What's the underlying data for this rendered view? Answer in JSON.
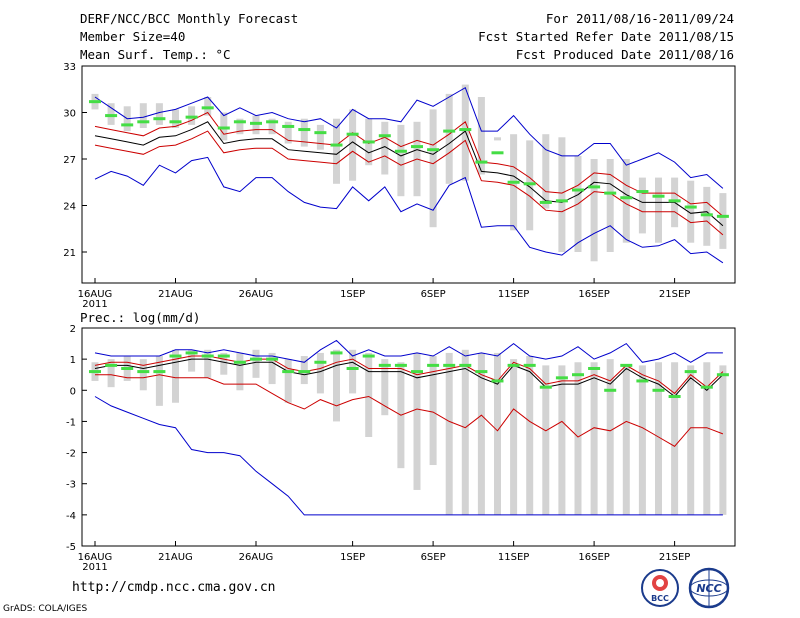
{
  "header": {
    "title": "DERF/NCC/BCC Monthly Forecast",
    "member_size": "Member Size=40",
    "variable": "Mean Surf. Temp.: °C",
    "period": "For 2011/08/16-2011/09/24",
    "refer_date": "Fcst Started Refer Date 2011/08/15",
    "produced_date": "Fcst Produced Date 2011/08/16"
  },
  "precip_label": "Prec.: log(mm/d)",
  "footer": {
    "url": "http://cmdp.ncc.cma.gov.cn",
    "credit": "GrADS: COLA/IGES",
    "logo_bcc": "BCC",
    "logo_ncc": "NCC"
  },
  "colors": {
    "envelope": "#0000cc",
    "spread": "#cc0000",
    "mean": "#000000",
    "box": "#d3d3d3",
    "median": "#44dd44"
  },
  "chart_data": [
    {
      "type": "box",
      "title": "Mean Surf. Temp.: °C",
      "ylim": [
        19,
        33
      ],
      "yticks": [
        21,
        24,
        27,
        30,
        33
      ],
      "x_ticks": [
        {
          "day": 0,
          "label": "16AUG",
          "year": "2011"
        },
        {
          "day": 5,
          "label": "21AUG"
        },
        {
          "day": 10,
          "label": "26AUG"
        },
        {
          "day": 16,
          "label": "1SEP"
        },
        {
          "day": 21,
          "label": "6SEP"
        },
        {
          "day": 26,
          "label": "11SEP"
        },
        {
          "day": 31,
          "label": "16SEP"
        },
        {
          "day": 36,
          "label": "21SEP"
        }
      ],
      "days": 40,
      "box_low": [
        30.2,
        29.2,
        28.8,
        29.0,
        29.2,
        29.0,
        29.2,
        29.8,
        28.2,
        28.6,
        28.6,
        28.6,
        28.0,
        27.8,
        27.6,
        25.4,
        25.6,
        26.6,
        26.0,
        24.6,
        24.6,
        22.6,
        25.4,
        25.6,
        26.0,
        28.2,
        22.4,
        22.4,
        23.8,
        21.0,
        21.0,
        20.4,
        21.0,
        21.6,
        22.2,
        21.6,
        22.6,
        21.6,
        21.4,
        21.2
      ],
      "box_high": [
        31.2,
        30.6,
        30.4,
        30.6,
        30.6,
        30.2,
        30.4,
        31.0,
        30.0,
        29.6,
        29.8,
        29.6,
        29.4,
        29.6,
        29.2,
        29.6,
        30.2,
        29.6,
        29.4,
        29.2,
        29.4,
        30.2,
        31.2,
        31.8,
        31.0,
        28.4,
        28.6,
        28.2,
        28.6,
        28.4,
        27.2,
        27.0,
        27.0,
        27.0,
        25.8,
        25.8,
        25.8,
        25.6,
        25.2,
        24.8
      ],
      "median": [
        30.7,
        29.8,
        29.2,
        29.4,
        29.6,
        29.4,
        29.7,
        30.3,
        29.0,
        29.4,
        29.3,
        29.4,
        29.1,
        28.9,
        28.7,
        27.9,
        28.6,
        28.1,
        28.5,
        27.5,
        27.8,
        27.6,
        28.8,
        28.9,
        26.8,
        27.4,
        25.5,
        25.4,
        24.2,
        24.3,
        25.0,
        25.2,
        24.8,
        24.5,
        24.9,
        24.6,
        24.3,
        23.9,
        23.4,
        23.3
      ],
      "mean": [
        28.5,
        28.3,
        28.1,
        27.9,
        28.4,
        28.5,
        28.9,
        29.4,
        28.0,
        28.2,
        28.3,
        28.3,
        27.6,
        27.5,
        27.4,
        27.3,
        28.1,
        27.4,
        27.8,
        27.2,
        27.6,
        27.3,
        28.0,
        28.8,
        26.2,
        26.1,
        25.9,
        25.2,
        24.3,
        24.2,
        24.7,
        25.5,
        25.4,
        24.7,
        24.2,
        24.2,
        24.2,
        23.5,
        23.6,
        22.7
      ],
      "spread_high": [
        29.1,
        28.9,
        28.7,
        28.5,
        29.0,
        29.1,
        29.5,
        30.0,
        28.6,
        28.8,
        28.9,
        28.9,
        28.2,
        28.1,
        28.0,
        27.9,
        28.7,
        28.0,
        28.4,
        27.8,
        28.2,
        27.9,
        28.6,
        29.4,
        26.8,
        26.7,
        26.5,
        25.8,
        24.9,
        24.8,
        25.3,
        26.1,
        26.0,
        25.3,
        24.8,
        24.8,
        24.8,
        24.1,
        24.2,
        23.3
      ],
      "spread_low": [
        27.9,
        27.7,
        27.5,
        27.3,
        27.8,
        27.9,
        28.3,
        28.8,
        27.4,
        27.6,
        27.7,
        27.7,
        27.0,
        26.9,
        26.8,
        26.7,
        27.5,
        26.8,
        27.2,
        26.6,
        27.0,
        26.7,
        27.4,
        28.2,
        25.6,
        25.5,
        25.3,
        24.6,
        23.7,
        23.6,
        24.1,
        24.9,
        24.8,
        24.1,
        23.6,
        23.6,
        23.6,
        22.9,
        23.0,
        22.1
      ],
      "env_high": [
        31.0,
        30.3,
        29.6,
        29.7,
        30.0,
        30.2,
        30.6,
        31.0,
        29.8,
        30.3,
        29.8,
        30.0,
        29.6,
        29.4,
        29.6,
        29.0,
        30.2,
        29.6,
        29.6,
        29.4,
        30.8,
        30.4,
        31.0,
        31.6,
        28.8,
        28.8,
        29.8,
        28.6,
        27.6,
        27.2,
        27.2,
        28.0,
        28.0,
        26.6,
        27.0,
        27.4,
        26.8,
        25.8,
        26.0,
        25.1
      ],
      "env_low": [
        25.7,
        26.2,
        25.9,
        25.3,
        26.6,
        26.1,
        26.9,
        27.1,
        25.2,
        24.9,
        25.8,
        25.8,
        24.9,
        24.2,
        23.9,
        23.8,
        25.2,
        24.3,
        25.2,
        23.6,
        24.1,
        23.7,
        25.3,
        25.8,
        22.6,
        22.7,
        22.7,
        21.3,
        21.0,
        20.8,
        21.6,
        22.2,
        22.7,
        21.8,
        21.3,
        21.4,
        21.8,
        20.9,
        21.0,
        20.3
      ]
    },
    {
      "type": "box",
      "title": "Prec.: log(mm/d)",
      "ylim": [
        -5,
        2
      ],
      "yticks": [
        -5,
        -4,
        -3,
        -2,
        -1,
        0,
        1,
        2
      ],
      "days": 40,
      "box_low": [
        0.3,
        0.1,
        0.3,
        0.0,
        -0.5,
        -0.4,
        0.6,
        0.4,
        0.5,
        0.0,
        0.4,
        0.2,
        -0.4,
        0.2,
        -0.1,
        -1.0,
        -0.1,
        -1.5,
        -0.8,
        -2.5,
        -3.2,
        -2.4,
        -4.0,
        -4.0,
        -4.0,
        -4.0,
        -4.0,
        -4.0,
        -4.0,
        -4.0,
        -4.0,
        -4.0,
        -4.0,
        -4.0,
        -4.0,
        -4.0,
        -4.0,
        -4.0,
        -4.0,
        -4.0
      ],
      "box_high": [
        0.9,
        1.0,
        1.1,
        1.0,
        1.1,
        1.3,
        1.3,
        1.3,
        1.2,
        1.2,
        1.3,
        1.2,
        1.0,
        1.1,
        1.2,
        1.3,
        1.3,
        1.2,
        1.0,
        0.9,
        1.2,
        1.1,
        1.2,
        1.3,
        1.2,
        1.2,
        1.0,
        1.1,
        0.8,
        0.8,
        0.9,
        0.9,
        1.0,
        0.8,
        0.8,
        0.9,
        0.9,
        0.8,
        0.9,
        0.8
      ],
      "median": [
        0.6,
        0.8,
        0.7,
        0.6,
        0.6,
        1.1,
        1.2,
        1.1,
        1.1,
        0.9,
        1.0,
        1.0,
        0.6,
        0.6,
        0.9,
        1.2,
        0.7,
        1.1,
        0.8,
        0.8,
        0.6,
        0.8,
        0.8,
        0.8,
        0.6,
        0.3,
        0.8,
        0.8,
        0.1,
        0.4,
        0.5,
        0.7,
        0.0,
        0.8,
        0.3,
        0.0,
        -0.2,
        0.6,
        0.1,
        0.5
      ],
      "mean": [
        0.7,
        0.8,
        0.8,
        0.7,
        0.8,
        0.9,
        1.0,
        1.0,
        0.9,
        0.8,
        0.9,
        0.9,
        0.6,
        0.5,
        0.6,
        0.8,
        0.9,
        0.6,
        0.6,
        0.6,
        0.4,
        0.5,
        0.6,
        0.7,
        0.4,
        0.2,
        0.8,
        0.6,
        0.1,
        0.2,
        0.2,
        0.4,
        0.2,
        0.7,
        0.4,
        0.2,
        -0.2,
        0.4,
        0.0,
        0.5
      ],
      "spread_high": [
        0.8,
        0.9,
        0.9,
        0.8,
        0.9,
        1.0,
        1.1,
        1.1,
        1.0,
        0.9,
        1.0,
        1.0,
        0.7,
        0.6,
        0.7,
        0.9,
        1.0,
        0.7,
        0.7,
        0.7,
        0.5,
        0.6,
        0.7,
        0.8,
        0.5,
        0.3,
        0.9,
        0.7,
        0.2,
        0.3,
        0.3,
        0.5,
        0.3,
        0.8,
        0.5,
        0.3,
        -0.1,
        0.5,
        0.1,
        0.6
      ],
      "spread_low": [
        0.5,
        0.5,
        0.4,
        0.4,
        0.5,
        0.4,
        0.4,
        0.4,
        0.2,
        0.2,
        0.2,
        -0.1,
        -0.4,
        -0.6,
        -0.3,
        -0.5,
        -0.3,
        -0.2,
        -0.5,
        -0.8,
        -0.6,
        -0.7,
        -1.0,
        -1.2,
        -0.8,
        -1.3,
        -0.6,
        -1.0,
        -1.3,
        -1.0,
        -1.5,
        -1.2,
        -1.3,
        -1.0,
        -1.2,
        -1.5,
        -1.8,
        -1.2,
        -1.2,
        -1.4
      ],
      "env_high": [
        1.2,
        1.1,
        1.1,
        1.1,
        1.1,
        1.3,
        1.3,
        1.2,
        1.3,
        1.2,
        1.1,
        1.1,
        1.0,
        0.9,
        1.3,
        1.6,
        1.1,
        1.3,
        1.1,
        1.1,
        1.2,
        1.1,
        1.4,
        1.1,
        1.2,
        1.1,
        1.5,
        1.1,
        1.0,
        1.1,
        1.4,
        1.0,
        1.2,
        1.5,
        0.9,
        1.0,
        1.2,
        0.9,
        1.2,
        1.2
      ],
      "env_low": [
        -0.2,
        -0.5,
        -0.7,
        -0.9,
        -1.1,
        -1.2,
        -1.9,
        -2.0,
        -2.0,
        -2.1,
        -2.6,
        -3.0,
        -3.4,
        -4.0,
        -4.0,
        -4.0,
        -4.0,
        -4.0,
        -4.0,
        -4.0,
        -4.0,
        -4.0,
        -4.0,
        -4.0,
        -4.0,
        -4.0,
        -4.0,
        -4.0,
        -4.0,
        -4.0,
        -4.0,
        -4.0,
        -4.0,
        -4.0,
        -4.0,
        -4.0,
        -4.0,
        -4.0,
        -4.0,
        -4.0
      ]
    }
  ]
}
